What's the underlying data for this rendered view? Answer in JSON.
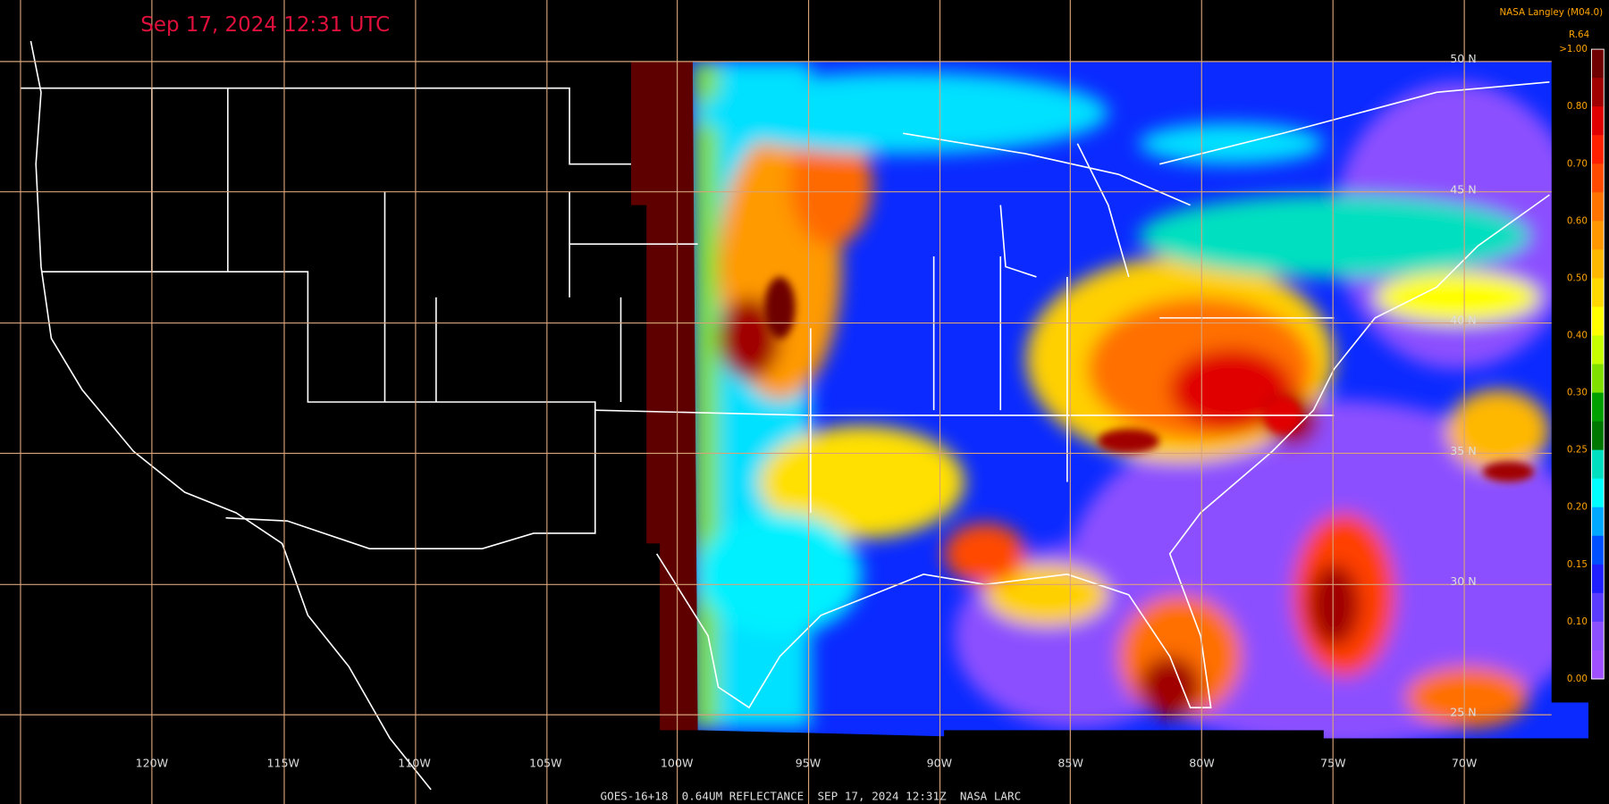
{
  "header": {
    "timestamp": "Sep 17, 2024 12:31 UTC",
    "credit": "NASA Langley (M04.0)",
    "channel": "R.64"
  },
  "colorbar": {
    "labels": [
      ">1.00",
      "0.80",
      "0.70",
      "0.60",
      "0.50",
      "0.40",
      "0.30",
      "0.25",
      "0.20",
      "0.15",
      "0.10",
      "0.00"
    ],
    "colors": [
      "#6e0000",
      "#a00000",
      "#e00000",
      "#ff2000",
      "#ff4a00",
      "#ff7400",
      "#ff9800",
      "#ffb800",
      "#ffd800",
      "#ffff00",
      "#c8ff00",
      "#80e000",
      "#00a000",
      "#007800",
      "#00e0c0",
      "#00ffff",
      "#00a8ff",
      "#0050ff",
      "#2020ff",
      "#5a3cff",
      "#8c50ff",
      "#a050ff"
    ]
  },
  "grid": {
    "lon_labels": [
      "120W",
      "115W",
      "110W",
      "105W",
      "100W",
      "95W",
      "90W",
      "85W",
      "80W",
      "75W",
      "70W"
    ],
    "lat_labels": [
      "50 N",
      "45 N",
      "40 N",
      "35 N",
      "30 N",
      "25 N"
    ]
  },
  "footer": "GOES-16+18  0.64UM REFLECTANCE  SEP 17, 2024 12:31Z  NASA LARC"
}
